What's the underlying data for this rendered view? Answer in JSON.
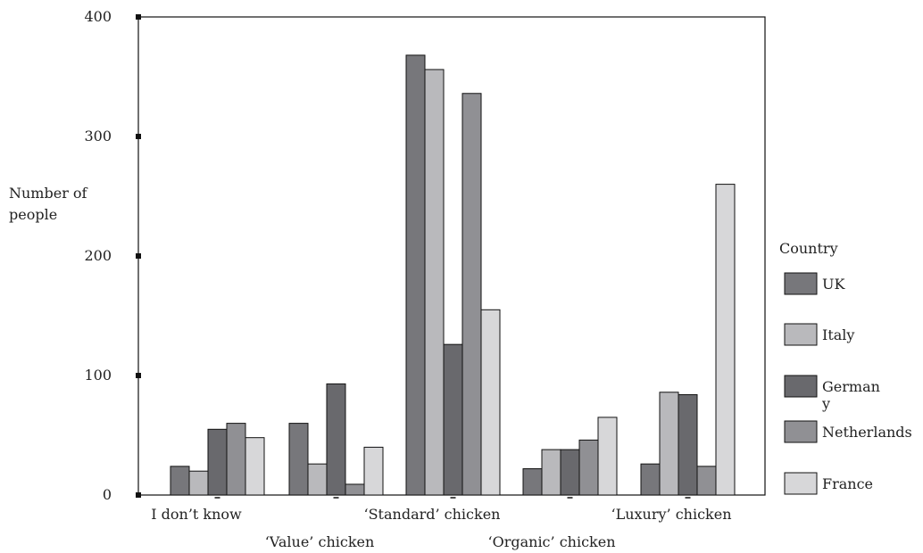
{
  "chart_data": {
    "type": "bar",
    "ylabel_lines": [
      "Number of",
      "people"
    ],
    "ylim": [
      0,
      400
    ],
    "yticks": [
      "0",
      "100",
      "200",
      "300",
      "400"
    ],
    "categories": [
      "I don’t know",
      "‘Value’ chicken",
      "‘Standard’ chicken",
      "‘Organic’ chicken",
      "‘Luxury’ chicken"
    ],
    "legend_title": "Country",
    "legend_position": "right",
    "grid": false,
    "series": [
      {
        "name": "UK",
        "name_lines": [
          "UK"
        ],
        "color": "#77777b",
        "values": [
          24,
          60,
          368,
          22,
          26
        ]
      },
      {
        "name": "Italy",
        "name_lines": [
          "Italy"
        ],
        "color": "#b9b9bc",
        "values": [
          20,
          26,
          356,
          38,
          86
        ]
      },
      {
        "name": "Germany",
        "name_lines": [
          "German",
          "y"
        ],
        "color": "#69696d",
        "values": [
          55,
          93,
          126,
          38,
          84
        ]
      },
      {
        "name": "Netherlands",
        "name_lines": [
          "Netherlands"
        ],
        "color": "#909094",
        "values": [
          60,
          9,
          336,
          46,
          24
        ]
      },
      {
        "name": "France",
        "name_lines": [
          "France"
        ],
        "color": "#d7d7d9",
        "values": [
          48,
          40,
          155,
          65,
          260
        ]
      }
    ]
  }
}
